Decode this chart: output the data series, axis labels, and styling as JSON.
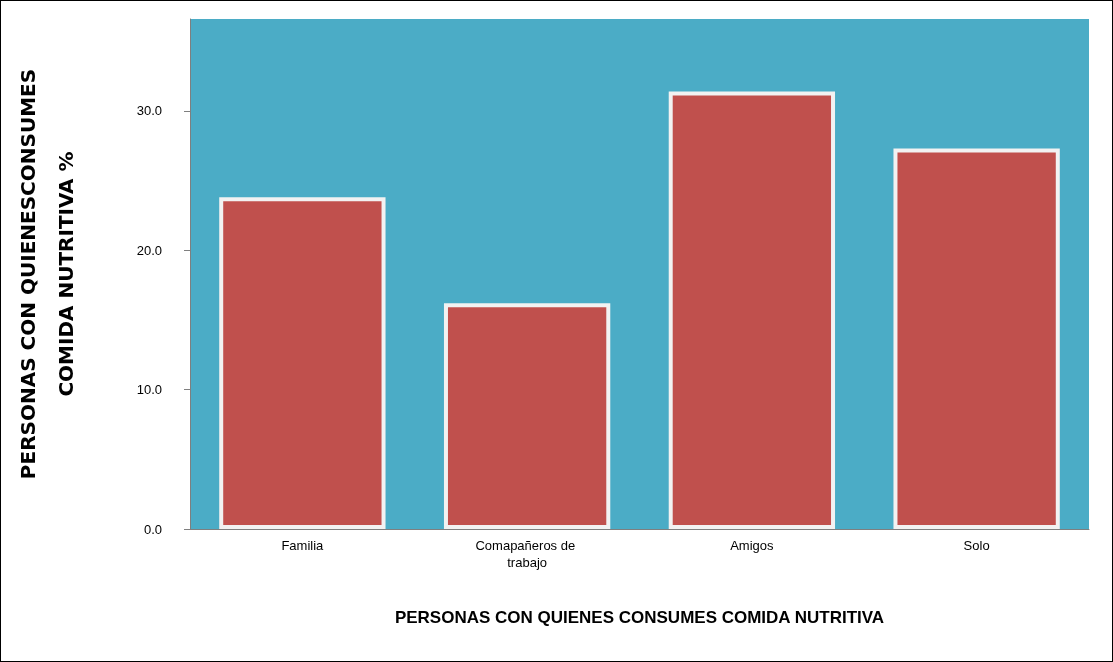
{
  "chart_data": {
    "type": "bar",
    "xlabel": "PERSONAS CON QUIENES CONSUMES COMIDA NUTRITIVA",
    "ylabel": "PERSONAS CON QUIENESCONSUMES\nCOMIDA NUTRITIVA %",
    "categories": [
      "Familia",
      "Comapañeros de trabajo",
      "Amigos",
      "Solo"
    ],
    "values": [
      23.8,
      16.2,
      31.4,
      27.3
    ],
    "color": "#c0504d",
    "ylim": [
      0,
      36.6
    ],
    "yticks": [
      {
        "value": 0,
        "label": "0.0"
      },
      {
        "value": 10,
        "label": "10.0"
      },
      {
        "value": 20,
        "label": "20.0"
      },
      {
        "value": 30,
        "label": "30.0"
      }
    ],
    "grid": false
  }
}
